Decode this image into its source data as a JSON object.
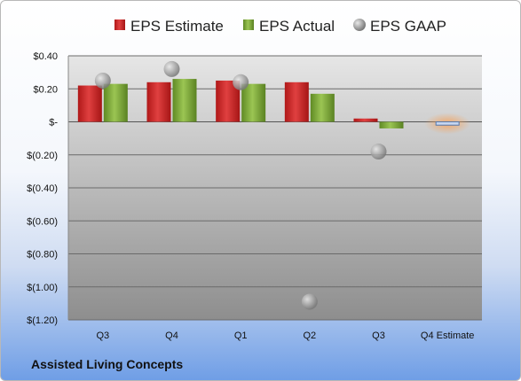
{
  "company": "Assisted Living Concepts",
  "colors": {
    "estimate": "#d22a2a",
    "actual": "#7fae3a",
    "gaap": "#a8a8a8",
    "highlight": "#f4a460",
    "plot_top": "#e6e6e6",
    "plot_bottom": "#8e8e8e"
  },
  "chart_data": {
    "type": "bar",
    "title": "",
    "xlabel": "",
    "ylabel": "",
    "categories": [
      "Q3",
      "Q4",
      "Q1",
      "Q2",
      "Q3",
      "Q4 Estimate"
    ],
    "series": [
      {
        "name": "EPS Estimate",
        "type": "bar",
        "values": [
          0.22,
          0.24,
          0.25,
          0.24,
          0.02,
          null
        ]
      },
      {
        "name": "EPS Actual",
        "type": "bar",
        "values": [
          0.23,
          0.26,
          0.23,
          0.17,
          -0.04,
          null
        ]
      },
      {
        "name": "EPS GAAP",
        "type": "scatter",
        "values": [
          0.25,
          0.32,
          0.24,
          -1.09,
          -0.18,
          null
        ]
      }
    ],
    "forecast": {
      "category": "Q4 Estimate",
      "value": -0.02
    },
    "ylim": [
      -1.2,
      0.4
    ],
    "yticks": [
      0.4,
      0.2,
      0,
      -0.2,
      -0.4,
      -0.6,
      -0.8,
      -1.0,
      -1.2
    ],
    "ytick_labels": [
      "$0.40",
      "$0.20",
      "$-",
      "$(0.20)",
      "$(0.40)",
      "$(0.60)",
      "$(0.80)",
      "$(1.00)",
      "$(1.20)"
    ],
    "grid": true,
    "legend": "top"
  }
}
